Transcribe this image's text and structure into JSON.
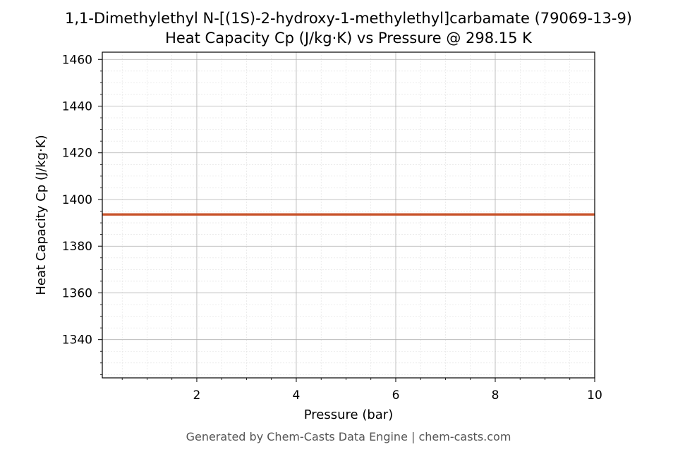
{
  "chart_data": {
    "type": "line",
    "title": "1,1-Dimethylethyl N-[(1S)-2-hydroxy-1-methylethyl]carbamate (79069-13-9)",
    "subtitle": "Heat Capacity Cp (J/kg·K) vs Pressure @ 298.15 K",
    "xlabel": "Pressure (bar)",
    "ylabel": "Heat Capacity Cp (J/kg·K)",
    "xlim": [
      0.1,
      10
    ],
    "ylim": [
      1323.6,
      1463.1
    ],
    "x_ticks": [
      2,
      4,
      6,
      8,
      10
    ],
    "y_ticks": [
      1340,
      1360,
      1380,
      1400,
      1420,
      1440,
      1460
    ],
    "grid": true,
    "series": [
      {
        "color": "#c8532a",
        "x": [
          0.1,
          10
        ],
        "y": [
          1393.6,
          1393.6
        ]
      }
    ]
  },
  "footer": {
    "text": "Generated by Chem-Casts Data Engine | chem-casts.com"
  },
  "colors": {
    "line": "#c8532a",
    "grid_major": "#b0b0b0",
    "grid_minor": "#e0e0e0",
    "footer": "#555555"
  }
}
